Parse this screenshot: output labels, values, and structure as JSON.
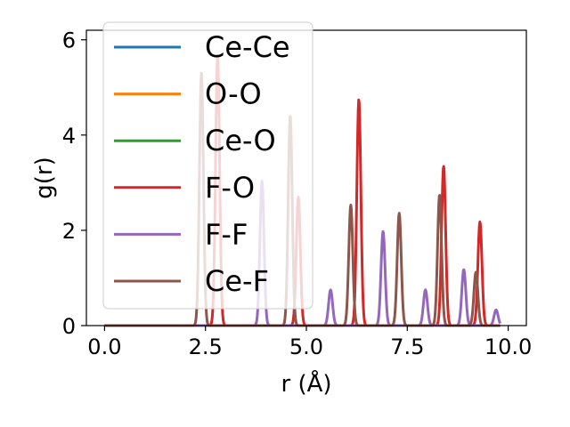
{
  "chart_data": {
    "type": "line",
    "xlabel": "r (Å)",
    "ylabel": "g(r)",
    "xlim": [
      -0.45,
      10.45
    ],
    "ylim": [
      0,
      6.2
    ],
    "xticks": [
      "0.0",
      "2.5",
      "5.0",
      "7.5",
      "10.0"
    ],
    "xtick_values": [
      0,
      2.5,
      5,
      7.5,
      10
    ],
    "yticks": [
      "0",
      "2",
      "4",
      "6"
    ],
    "ytick_values": [
      0,
      2,
      4,
      6
    ],
    "legend_position": "upper-left",
    "peak_width": 0.05,
    "x_range": [
      0,
      9.8
    ],
    "series": [
      {
        "name": "Ce-Ce",
        "color": "#1f77b4",
        "peaks": []
      },
      {
        "name": "O-O",
        "color": "#ff7f0e",
        "peaks": []
      },
      {
        "name": "Ce-O",
        "color": "#2ca02c",
        "peaks": []
      },
      {
        "name": "F-O",
        "color": "#d62728",
        "peaks": [
          [
            2.8,
            5.7
          ],
          [
            4.8,
            2.7
          ],
          [
            6.3,
            4.75
          ],
          [
            8.4,
            3.35
          ],
          [
            9.3,
            2.18
          ]
        ]
      },
      {
        "name": "F-F",
        "color": "#9467bd",
        "peaks": [
          [
            3.9,
            3.05
          ],
          [
            5.6,
            0.75
          ],
          [
            6.9,
            1.98
          ],
          [
            7.95,
            0.75
          ],
          [
            8.9,
            1.18
          ],
          [
            9.7,
            0.33
          ]
        ]
      },
      {
        "name": "Ce-F",
        "color": "#8c564b",
        "peaks": [
          [
            2.4,
            5.3
          ],
          [
            4.6,
            4.42
          ],
          [
            6.1,
            2.53
          ],
          [
            7.3,
            2.36
          ],
          [
            8.3,
            2.75
          ],
          [
            9.2,
            1.12
          ]
        ]
      }
    ]
  }
}
